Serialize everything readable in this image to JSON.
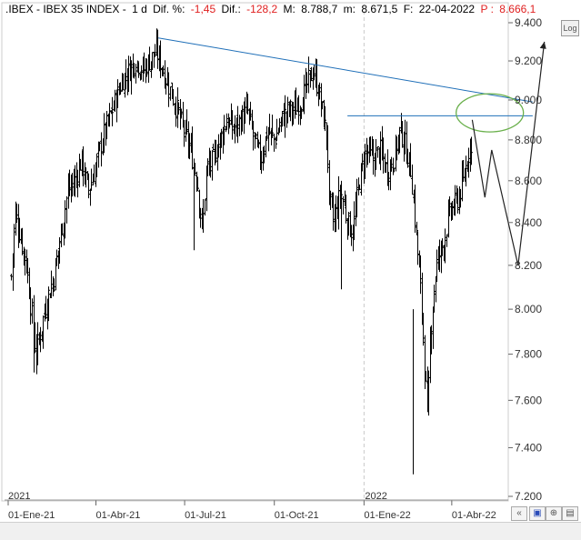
{
  "header": {
    "instrument": ".IBEX - IBEX 35 INDEX -",
    "period": "1 d",
    "change_pct_label": "Dif. %:",
    "change_pct": "-1,45",
    "change_label": "Dif.:",
    "change": "-128,2",
    "high_label": "M:",
    "high": "8.788,7",
    "low_label": "m:",
    "low": "8.671,5",
    "date_label": "F:",
    "date": "22-04-2022",
    "price_label": "P :",
    "price": "8.666,1"
  },
  "buttons": {
    "log": "Log"
  },
  "chart_data": {
    "type": "ohlc",
    "y_axis": {
      "min": 7200,
      "max": 9400,
      "scale": "log",
      "ticks": [
        "9.400",
        "9.200",
        "9.000",
        "8.800",
        "8.600",
        "8.400",
        "8.200",
        "8.000",
        "7.800",
        "7.600",
        "7.400",
        "7.200"
      ],
      "position": "right"
    },
    "x_axis": {
      "tick_labels": [
        "01-Ene-21",
        "01-Abr-21",
        "01-Jul-21",
        "01-Oct-21",
        "01-Ene-22",
        "01-Abr-22"
      ],
      "year_labels": [
        "2021",
        "2022"
      ]
    },
    "series": [
      {
        "anchors": [
          [
            "2021-01-04",
            8150
          ],
          [
            "2021-01-08",
            8450
          ],
          [
            "2021-01-13",
            8350
          ],
          [
            "2021-01-20",
            8200
          ],
          [
            "2021-01-29",
            7800
          ],
          [
            "2021-02-03",
            7900
          ],
          [
            "2021-02-10",
            8050
          ],
          [
            "2021-02-17",
            8150
          ],
          [
            "2021-02-24",
            8350
          ],
          [
            "2021-03-03",
            8550
          ],
          [
            "2021-03-10",
            8600
          ],
          [
            "2021-03-17",
            8700
          ],
          [
            "2021-03-24",
            8550
          ],
          [
            "2021-03-31",
            8650
          ],
          [
            "2021-04-07",
            8800
          ],
          [
            "2021-04-14",
            8900
          ],
          [
            "2021-04-21",
            9000
          ],
          [
            "2021-04-28",
            9100
          ],
          [
            "2021-05-05",
            9150
          ],
          [
            "2021-05-12",
            9200
          ],
          [
            "2021-05-19",
            9150
          ],
          [
            "2021-05-26",
            9200
          ],
          [
            "2021-06-02",
            9250
          ],
          [
            "2021-06-09",
            9150
          ],
          [
            "2021-06-16",
            9050
          ],
          [
            "2021-06-23",
            8950
          ],
          [
            "2021-06-30",
            8850
          ],
          [
            "2021-07-07",
            8750
          ],
          [
            "2021-07-14",
            8600
          ],
          [
            "2021-07-19",
            8350
          ],
          [
            "2021-07-23",
            8650
          ],
          [
            "2021-07-30",
            8700
          ],
          [
            "2021-08-06",
            8800
          ],
          [
            "2021-08-13",
            8900
          ],
          [
            "2021-08-20",
            8850
          ],
          [
            "2021-08-27",
            8900
          ],
          [
            "2021-09-03",
            8950
          ],
          [
            "2021-09-10",
            8800
          ],
          [
            "2021-09-17",
            8700
          ],
          [
            "2021-09-24",
            8850
          ],
          [
            "2021-10-01",
            8800
          ],
          [
            "2021-10-08",
            8900
          ],
          [
            "2021-10-15",
            8950
          ],
          [
            "2021-10-22",
            8950
          ],
          [
            "2021-10-29",
            9000
          ],
          [
            "2021-11-05",
            9100
          ],
          [
            "2021-11-10",
            9150
          ],
          [
            "2021-11-17",
            9000
          ],
          [
            "2021-11-24",
            8800
          ],
          [
            "2021-11-26",
            8500
          ],
          [
            "2021-12-01",
            8400
          ],
          [
            "2021-12-08",
            8550
          ],
          [
            "2021-12-15",
            8400
          ],
          [
            "2021-12-20",
            8350
          ],
          [
            "2021-12-27",
            8600
          ],
          [
            "2022-01-03",
            8750
          ],
          [
            "2022-01-10",
            8700
          ],
          [
            "2022-01-17",
            8750
          ],
          [
            "2022-01-24",
            8650
          ],
          [
            "2022-01-31",
            8700
          ],
          [
            "2022-02-07",
            8850
          ],
          [
            "2022-02-11",
            8800
          ],
          [
            "2022-02-18",
            8650
          ],
          [
            "2022-02-24",
            8300
          ],
          [
            "2022-03-01",
            8000
          ],
          [
            "2022-03-07",
            7500
          ],
          [
            "2022-03-10",
            7900
          ],
          [
            "2022-03-16",
            8200
          ],
          [
            "2022-03-23",
            8300
          ],
          [
            "2022-03-30",
            8450
          ],
          [
            "2022-04-06",
            8500
          ],
          [
            "2022-04-13",
            8600
          ],
          [
            "2022-04-20",
            8800
          ],
          [
            "2022-04-22",
            8666
          ]
        ],
        "name": ""
      }
    ],
    "annotations": {
      "resistance_line": {
        "from": [
          "2021-06-04",
          9320
        ],
        "to": [
          "2022-06-23",
          8990
        ],
        "color": "#1f6fb8"
      },
      "horizontal_line": {
        "from": [
          "2021-12-15",
          8920
        ],
        "to": [
          "2022-06-23",
          8920
        ],
        "color": "#1f6fb8"
      },
      "ellipse": {
        "center": [
          "2022-05-10",
          8935
        ],
        "color": "#6ab04c"
      },
      "projection_path": [
        [
          "2022-04-22",
          8900
        ],
        [
          "2022-05-05",
          8520
        ],
        [
          "2022-05-12",
          8750
        ],
        [
          "2022-06-08",
          8200
        ],
        [
          "2022-07-05",
          9300
        ]
      ]
    }
  }
}
